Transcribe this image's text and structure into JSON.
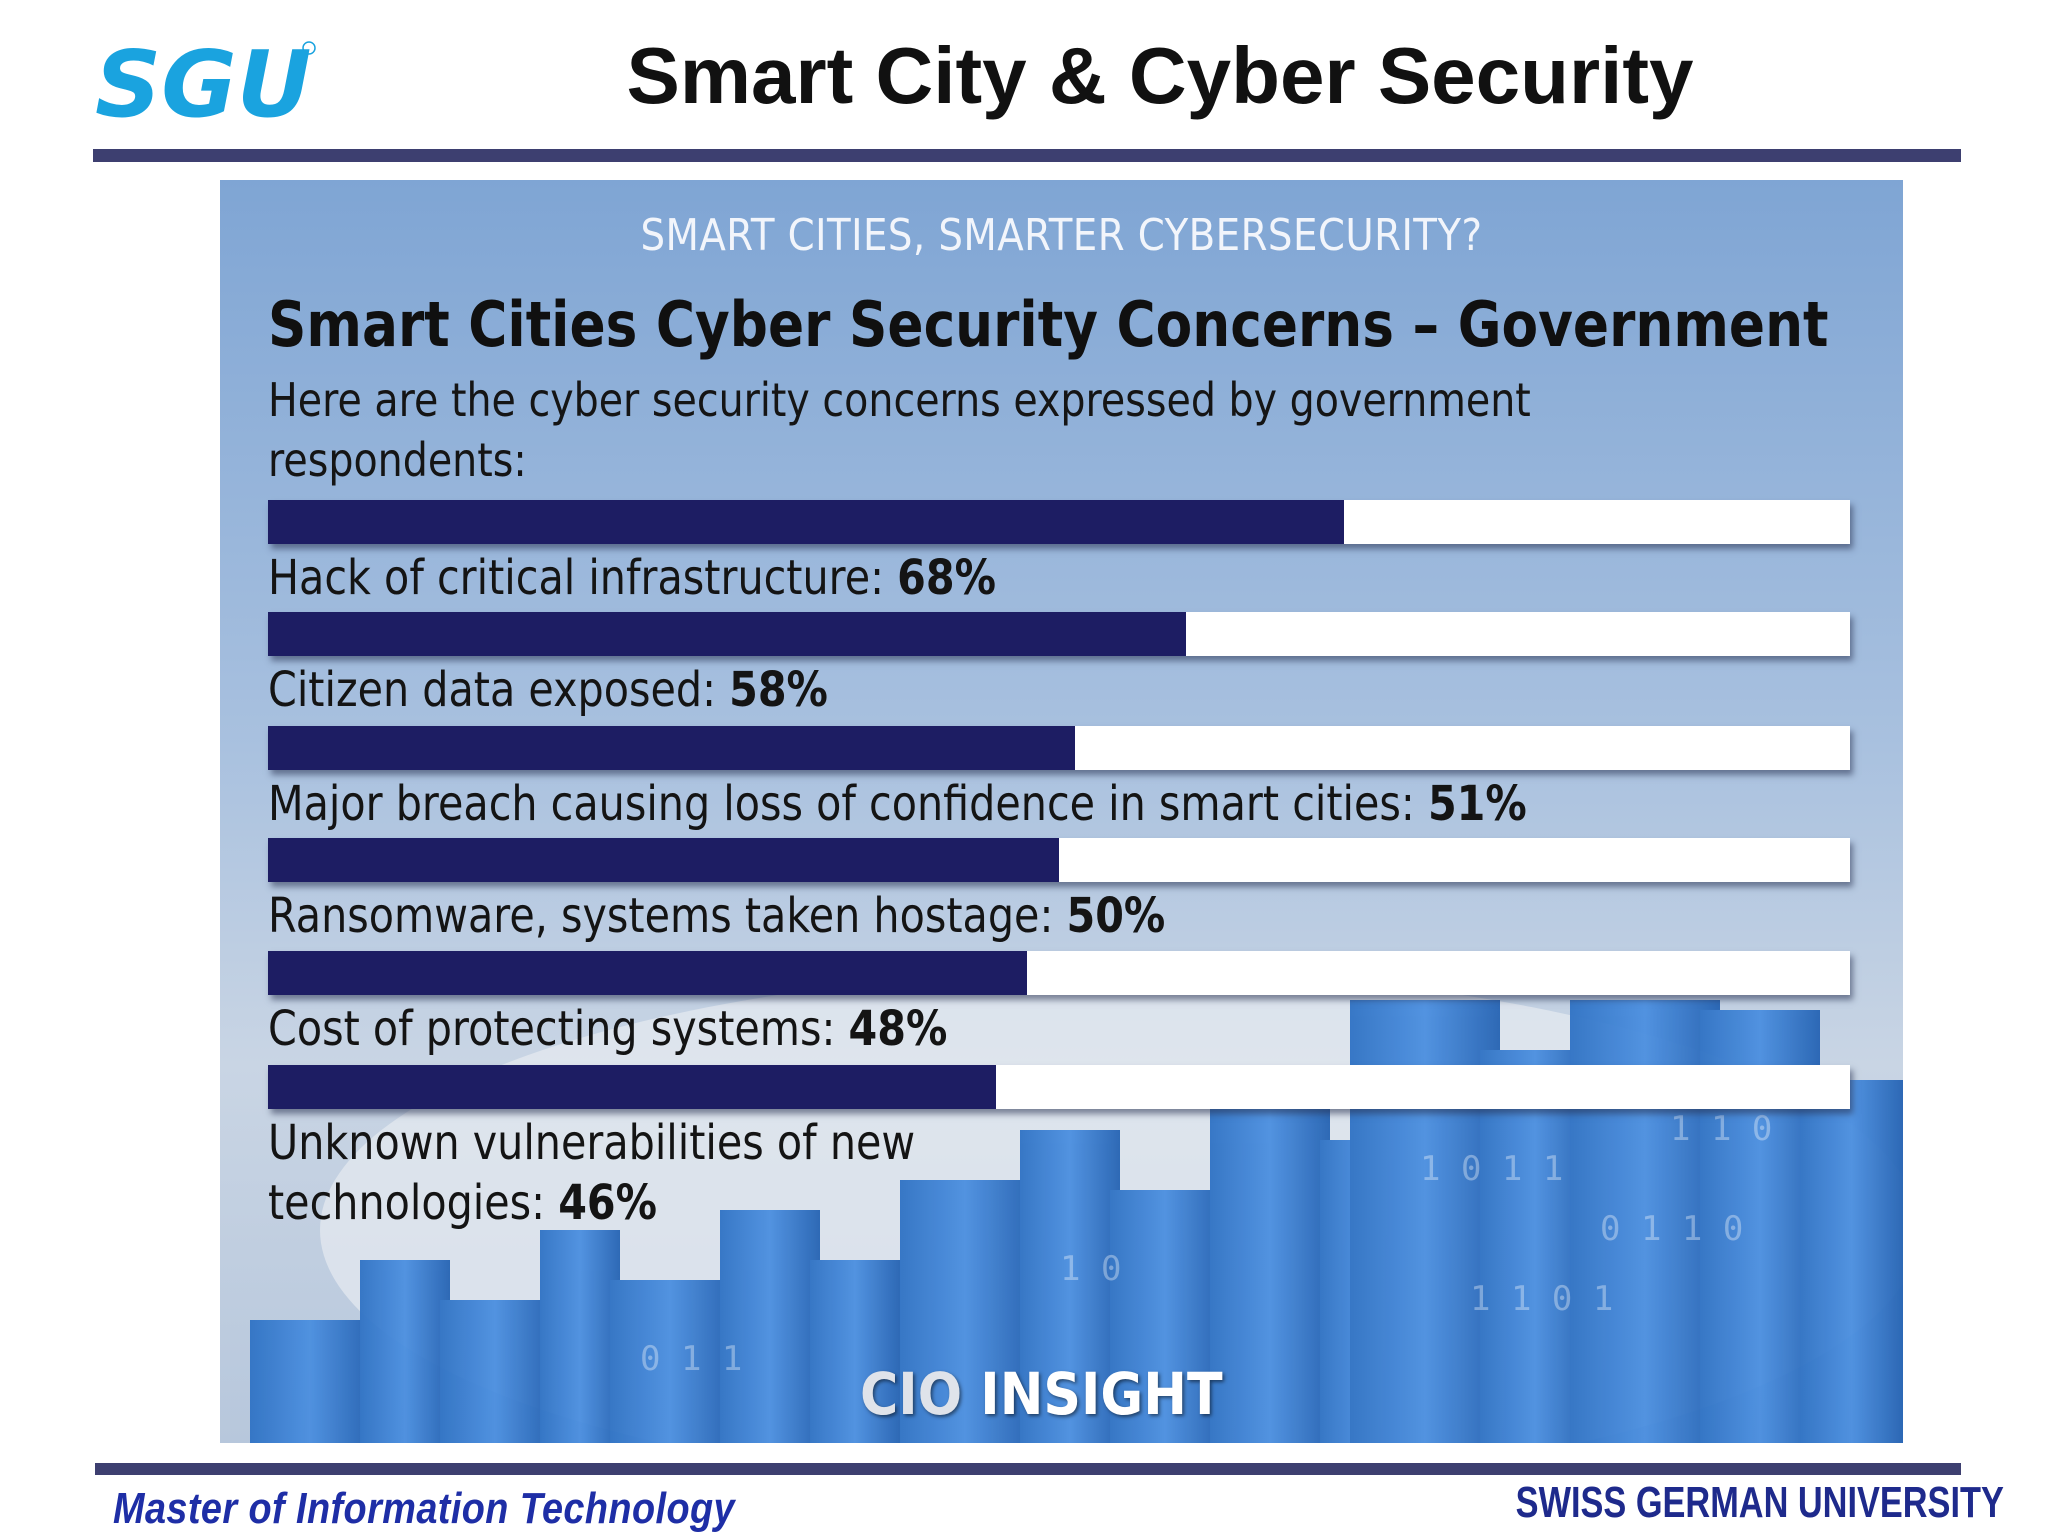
{
  "slide": {
    "logo_text": "SGU",
    "title": "Smart City & Cyber Security",
    "footer_left": "Master of Information Technology",
    "footer_right": "SWISS GERMAN UNIVERSITY",
    "colors": {
      "rule": "#3d3f70",
      "logo": "#1aa3df",
      "footer_left": "#1e2ea6"
    }
  },
  "poster": {
    "kicker": "SMART CITIES, SMARTER CYBERSECURITY?",
    "brand_part1": "CIO",
    "brand_part2": "INSIGHT"
  },
  "chart_data": {
    "type": "bar",
    "orientation": "horizontal",
    "title": "Smart Cities Cyber Security Concerns – Government",
    "subtitle": "Here are the cyber security concerns expressed by government respondents:",
    "xlim": [
      0,
      100
    ],
    "grid": false,
    "bar_color": "#1d1d63",
    "track_color": "#ffffff",
    "items": [
      {
        "label": "Hack of critical infrastructure: ",
        "value_label": "68%",
        "value": 68
      },
      {
        "label": "Citizen data exposed: ",
        "value_label": "58%",
        "value": 58
      },
      {
        "label": "Major breach causing loss of confidence in smart cities: ",
        "value_label": "51%",
        "value": 51
      },
      {
        "label": "Ransomware, systems taken hostage: ",
        "value_label": "50%",
        "value": 50
      },
      {
        "label": "Cost of protecting systems: ",
        "value_label": "48%",
        "value": 48
      },
      {
        "label": "Unknown vulnerabilities of new technologies: ",
        "value_label": "46%",
        "value": 46
      }
    ]
  }
}
